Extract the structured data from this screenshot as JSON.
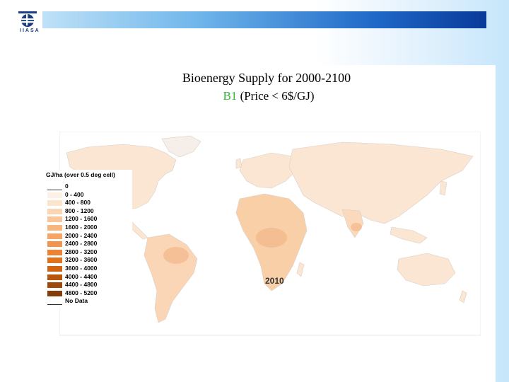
{
  "slide": {
    "logo_text": "IIASA",
    "title_line1": "Bioenergy Supply for 2000-2100",
    "scenario": "B1",
    "title_line2_rest": " (Price < 6$/GJ)"
  },
  "map": {
    "year": "2010",
    "legend": {
      "title": "GJ/ha (over 0.5 deg cell)",
      "items": [
        {
          "label": "0",
          "color": "#ffffff"
        },
        {
          "label": "0 - 400",
          "color": "#fdf1e6"
        },
        {
          "label": "400 - 800",
          "color": "#fce4cd"
        },
        {
          "label": "800 - 1200",
          "color": "#fbd6b3"
        },
        {
          "label": "1200 - 1600",
          "color": "#f9c699"
        },
        {
          "label": "1600 - 2000",
          "color": "#f8b67f"
        },
        {
          "label": "2000 - 2400",
          "color": "#f6a566"
        },
        {
          "label": "2400 - 2800",
          "color": "#f4944c"
        },
        {
          "label": "2800 - 3200",
          "color": "#ee8233"
        },
        {
          "label": "3200 - 3600",
          "color": "#e0731f"
        },
        {
          "label": "3600 - 4000",
          "color": "#cf6512"
        },
        {
          "label": "4000 - 4400",
          "color": "#b8570c"
        },
        {
          "label": "4400 - 4800",
          "color": "#9f4a0a"
        },
        {
          "label": "4800 - 5200",
          "color": "#853d08"
        },
        {
          "label": "No Data",
          "color": "#ffffff"
        }
      ]
    }
  }
}
